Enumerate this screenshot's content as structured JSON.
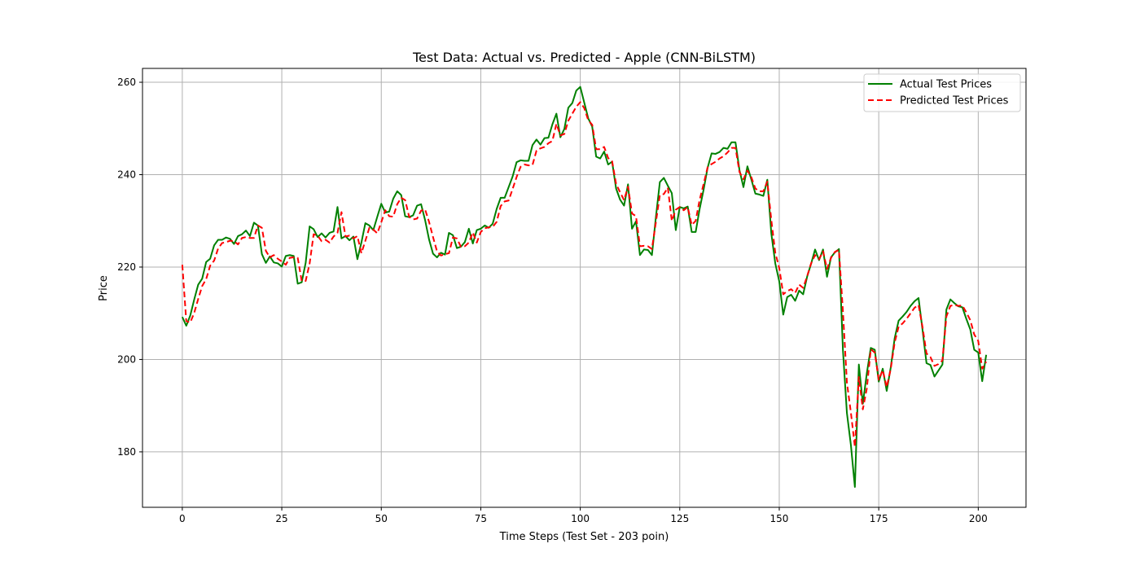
{
  "chart_data": {
    "type": "line",
    "title": "Test Data: Actual vs. Predicted - Apple (CNN-BiLSTM)",
    "xlabel": "Time Steps (Test Set - 203 poin)",
    "ylabel": "Price",
    "xlim": [
      -10,
      212
    ],
    "ylim": [
      168,
      263
    ],
    "xticks": [
      0,
      25,
      50,
      75,
      100,
      125,
      150,
      175,
      200
    ],
    "yticks": [
      180,
      200,
      220,
      240,
      260
    ],
    "grid": true,
    "legend_position": "top-right",
    "series": [
      {
        "name": "Actual Test Prices",
        "color": "#008000",
        "dash": "solid",
        "values": [
          209.2,
          207.3,
          209.5,
          213.0,
          216.2,
          217.5,
          221.1,
          221.8,
          224.7,
          225.9,
          225.9,
          226.4,
          226.1,
          225.0,
          226.7,
          227.1,
          227.9,
          226.7,
          229.6,
          229.0,
          222.8,
          220.9,
          222.3,
          221.0,
          220.8,
          220.1,
          222.4,
          222.6,
          222.4,
          216.4,
          216.7,
          220.9,
          228.8,
          228.2,
          226.5,
          227.3,
          226.4,
          227.4,
          227.7,
          233.0,
          226.2,
          226.7,
          225.8,
          226.6,
          221.7,
          225.3,
          229.5,
          229.0,
          228.0,
          230.9,
          233.7,
          231.8,
          232.0,
          234.8,
          236.4,
          235.6,
          231.0,
          230.8,
          231.2,
          233.3,
          233.6,
          230.2,
          226.0,
          222.9,
          222.1,
          223.1,
          222.7,
          227.4,
          226.9,
          224.1,
          224.4,
          225.4,
          228.3,
          225.1,
          228.0,
          228.3,
          229.0,
          228.5,
          229.4,
          232.6,
          235.0,
          235.0,
          237.3,
          239.6,
          242.7,
          243.1,
          243.0,
          243.0,
          246.4,
          247.6,
          246.5,
          247.9,
          248.0,
          250.9,
          253.2,
          248.1,
          249.9,
          254.5,
          255.5,
          258.2,
          259.0,
          255.6,
          252.2,
          250.4,
          243.9,
          243.5,
          245.0,
          242.2,
          242.8,
          237.0,
          234.6,
          233.3,
          237.9,
          228.3,
          229.9,
          222.6,
          223.8,
          223.7,
          222.6,
          230.8,
          238.4,
          239.3,
          237.6,
          236.0,
          228.0,
          233.0,
          232.7,
          233.1,
          227.6,
          227.6,
          232.6,
          236.8,
          241.5,
          244.6,
          244.5,
          244.9,
          245.8,
          245.6,
          247.0,
          247.0,
          241.0,
          237.3,
          241.8,
          238.9,
          235.9,
          235.7,
          235.4,
          238.9,
          227.3,
          220.8,
          216.9,
          209.7,
          213.5,
          214.0,
          212.7,
          214.9,
          214.1,
          217.9,
          220.7,
          223.8,
          221.5,
          223.8,
          217.9,
          222.1,
          223.2,
          223.9,
          202.0,
          188.4,
          181.5,
          172.4,
          198.9,
          190.4,
          197.0,
          202.5,
          202.1,
          195.2,
          198.0,
          193.2,
          198.2,
          204.6,
          208.4,
          209.3,
          210.3,
          211.6,
          212.6,
          213.3,
          206.4,
          199.2,
          198.8,
          196.3,
          197.6,
          198.9,
          210.8,
          213.0,
          212.2,
          211.5,
          211.3,
          208.8,
          206.5,
          202.1,
          201.5,
          195.3,
          201.0
        ]
      },
      {
        "name": "Predicted Test Prices",
        "color": "#ff0000",
        "dash": "dashed",
        "values": [
          220.5,
          208.3,
          208.0,
          210.1,
          213.1,
          215.9,
          217.4,
          220.3,
          221.4,
          224.0,
          225.2,
          225.4,
          225.7,
          225.6,
          224.9,
          226.3,
          226.5,
          226.3,
          226.3,
          229.0,
          228.5,
          223.5,
          222.1,
          222.6,
          221.8,
          221.2,
          220.5,
          222.0,
          222.1,
          222.0,
          217.0,
          217.0,
          220.8,
          227.1,
          226.8,
          225.6,
          225.9,
          225.3,
          226.6,
          227.4,
          231.9,
          226.6,
          226.8,
          226.2,
          226.7,
          223.0,
          225.7,
          228.5,
          228.1,
          227.3,
          229.7,
          232.3,
          231.0,
          230.9,
          233.6,
          235.0,
          234.5,
          230.9,
          230.3,
          230.5,
          232.2,
          232.5,
          229.8,
          226.5,
          223.4,
          222.5,
          222.8,
          223.0,
          226.4,
          226.2,
          224.4,
          224.5,
          225.3,
          227.5,
          225.3,
          227.6,
          228.4,
          228.6,
          228.7,
          229.8,
          233.2,
          234.2,
          234.4,
          236.9,
          239.5,
          241.7,
          242.2,
          242.0,
          242.1,
          245.2,
          245.7,
          246.0,
          246.8,
          247.3,
          251.0,
          248.5,
          248.8,
          251.7,
          253.2,
          254.7,
          255.7,
          254.4,
          251.8,
          250.8,
          245.5,
          245.5,
          246.0,
          243.6,
          242.9,
          238.0,
          236.2,
          234.5,
          237.4,
          231.6,
          231.0,
          224.5,
          224.6,
          224.5,
          223.9,
          229.7,
          235.6,
          235.8,
          237.2,
          230.0,
          232.4,
          233.0,
          232.3,
          233.0,
          229.1,
          230.0,
          234.6,
          238.0,
          241.6,
          242.3,
          242.8,
          243.5,
          244.0,
          244.8,
          245.8,
          245.8,
          240.6,
          239.0,
          240.9,
          239.4,
          237.0,
          236.4,
          236.4,
          238.5,
          230.2,
          223.1,
          219.8,
          214.1,
          214.8,
          215.2,
          214.4,
          216.2,
          215.5,
          218.0,
          220.8,
          222.6,
          221.7,
          223.4,
          219.6,
          222.0,
          223.3,
          223.7,
          210.4,
          195.0,
          188.5,
          181.1,
          196.2,
          189.2,
          193.7,
          202.2,
          201.5,
          195.6,
          197.7,
          194.0,
          197.9,
          203.7,
          207.1,
          207.8,
          208.8,
          210.0,
          211.2,
          211.8,
          207.0,
          201.3,
          200.5,
          198.6,
          199.0,
          199.8,
          209.3,
          211.6,
          211.8,
          211.6,
          211.7,
          210.2,
          208.5,
          205.4,
          204.0,
          198.0,
          199.5
        ]
      }
    ]
  }
}
